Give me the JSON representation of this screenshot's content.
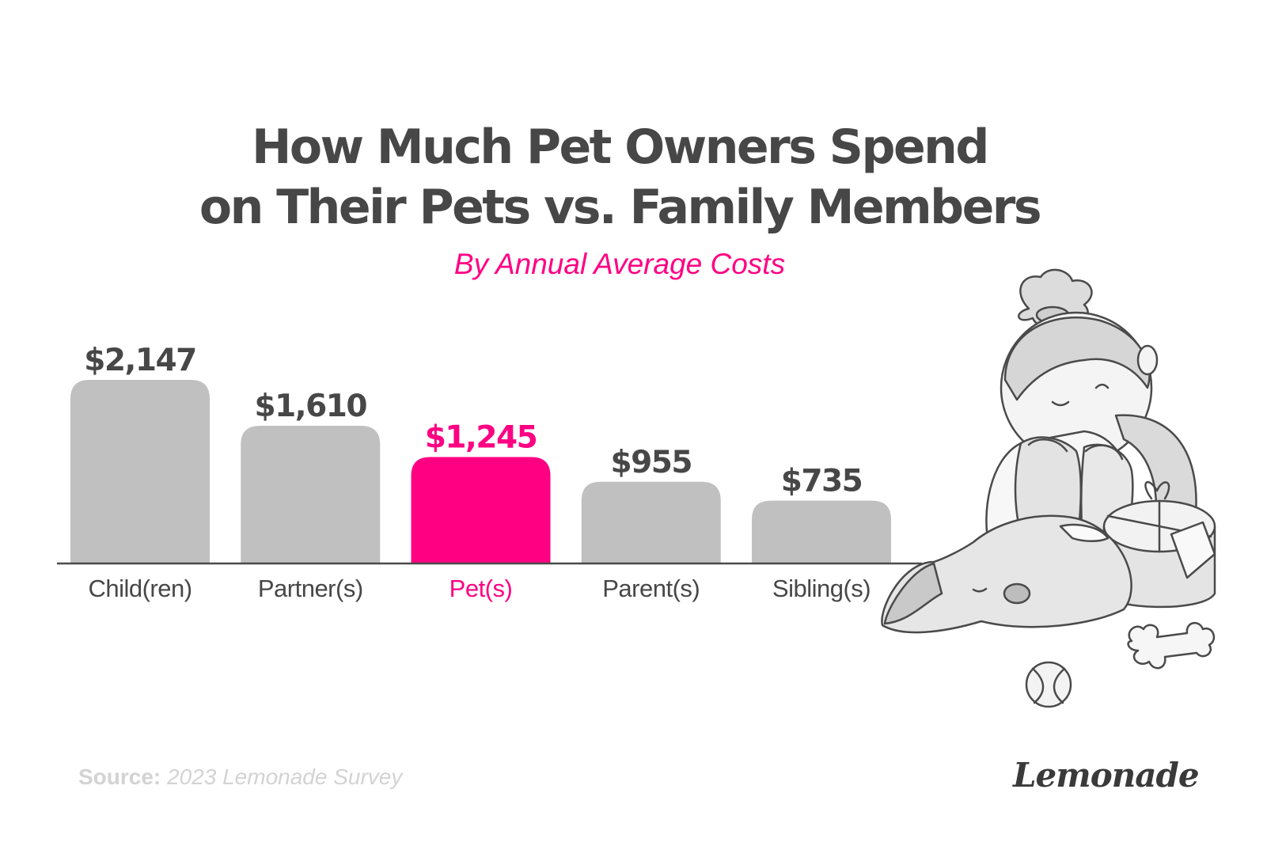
{
  "title_lines": [
    "How Much Pet Owners Spend",
    "on Their Pets vs. Family Members"
  ],
  "subtitle": "By Annual Average Costs",
  "source": {
    "label": "Source:",
    "text": "2023 Lemonade Survey"
  },
  "brand": "Lemonade",
  "colors": {
    "bar": "#c0c0c0",
    "highlight": "#ff0083",
    "text": "#474747",
    "axis": "#4a4a4a"
  },
  "chart_data": {
    "type": "bar",
    "title": "How Much Pet Owners Spend on Their Pets vs. Family Members",
    "subtitle": "By Annual Average Costs",
    "categories": [
      "Child(ren)",
      "Partner(s)",
      "Pet(s)",
      "Parent(s)",
      "Sibling(s)"
    ],
    "values": [
      2147,
      1610,
      1245,
      955,
      735
    ],
    "value_labels": [
      "$2,147",
      "$1,610",
      "$1,245",
      "$955",
      "$735"
    ],
    "highlight": "Pet(s)",
    "xlabel": "",
    "ylabel": "",
    "ylim": [
      0,
      2147
    ],
    "grid": false,
    "legend": "none"
  }
}
